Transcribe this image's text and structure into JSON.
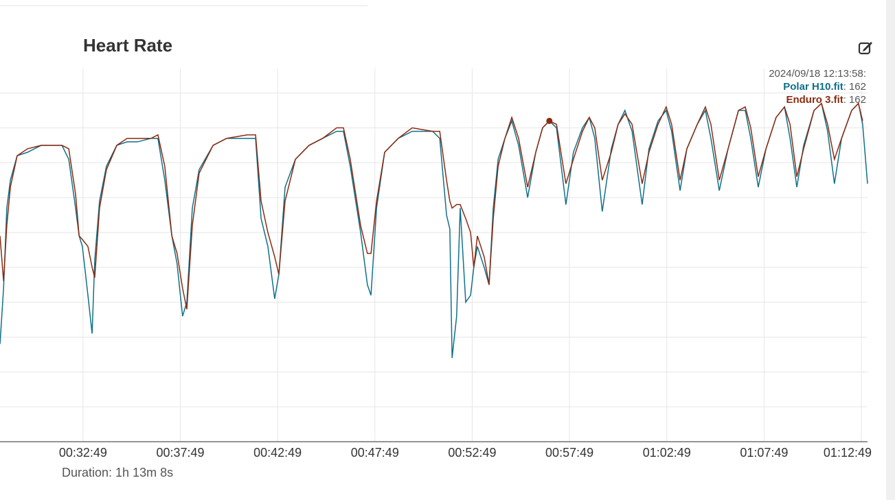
{
  "chart_data": {
    "type": "line",
    "title": "Heart Rate",
    "footer": "Duration: 1h 13m 8s",
    "x": [
      1713,
      1724,
      1734,
      1745,
      1766,
      1798,
      1840,
      1904,
      1925,
      1946,
      1957,
      1967,
      1984,
      1997,
      2005,
      2020,
      2041,
      2073,
      2105,
      2137,
      2179,
      2200,
      2221,
      2243,
      2259,
      2276,
      2289,
      2306,
      2327,
      2370,
      2412,
      2475,
      2501,
      2518,
      2539,
      2560,
      2573,
      2592,
      2624,
      2666,
      2708,
      2751,
      2772,
      2793,
      2825,
      2846,
      2857,
      2874,
      2899,
      2941,
      2984,
      3047,
      3069,
      3090,
      3100,
      3107,
      3121,
      3132,
      3149,
      3164,
      3174,
      3185,
      3206,
      3221,
      3234,
      3249,
      3270,
      3291,
      3312,
      3340,
      3365,
      3386,
      3407,
      3429,
      3458,
      3481,
      3509,
      3530,
      3547,
      3570,
      3598,
      3619,
      3640,
      3662,
      3693,
      3714,
      3742,
      3767,
      3784,
      3810,
      3831,
      3863,
      3888,
      3905,
      3931,
      3958,
      3990,
      4011,
      4028,
      4051,
      4075,
      4106,
      4132,
      4149,
      4170,
      4191,
      4223,
      4246,
      4265,
      4286,
      4308,
      4339,
      4360,
      4373,
      4388
    ],
    "series": [
      {
        "name": "Polar H10.fit",
        "color": "#106f8a",
        "values": [
          98,
          114,
          137,
          145,
          152,
          153,
          155,
          155,
          151,
          137,
          129,
          126,
          112,
          101,
          122,
          139,
          149,
          155,
          156,
          156,
          157,
          157,
          145,
          129,
          121,
          106,
          110,
          137,
          148,
          155,
          157,
          157,
          157,
          134,
          126,
          111,
          118,
          143,
          151,
          155,
          157,
          159,
          159,
          149,
          130,
          115,
          112,
          137,
          153,
          157,
          159,
          159,
          157,
          135,
          131,
          94,
          106,
          137,
          110,
          112,
          120,
          126,
          120,
          115,
          137,
          151,
          157,
          162,
          155,
          140,
          153,
          160,
          162,
          160,
          138,
          153,
          160,
          163,
          157,
          136,
          154,
          161,
          165,
          159,
          138,
          154,
          162,
          165,
          159,
          142,
          154,
          161,
          165,
          157,
          142,
          154,
          165,
          165,
          157,
          143,
          154,
          163,
          166,
          157,
          143,
          155,
          165,
          167,
          159,
          144,
          157,
          165,
          167,
          161,
          144
        ]
      },
      {
        "name": "Enduro 3.fit",
        "color": "#8b2a10",
        "values": [
          129,
          116,
          132,
          143,
          152,
          154,
          155,
          155,
          154,
          141,
          129,
          128,
          126,
          120,
          117,
          137,
          148,
          155,
          157,
          157,
          157,
          158,
          149,
          129,
          124,
          114,
          108,
          132,
          147,
          155,
          157,
          158,
          158,
          139,
          130,
          123,
          118,
          139,
          151,
          155,
          157,
          160,
          160,
          151,
          132,
          124,
          124,
          139,
          153,
          157,
          160,
          159,
          159,
          145,
          139,
          137,
          138,
          138,
          134,
          130,
          120,
          129,
          123,
          115,
          134,
          149,
          157,
          163,
          157,
          143,
          153,
          160,
          162,
          161,
          144,
          151,
          159,
          163,
          160,
          145,
          153,
          161,
          164,
          161,
          144,
          153,
          161,
          166,
          161,
          145,
          154,
          161,
          166,
          161,
          145,
          154,
          165,
          166,
          160,
          146,
          154,
          163,
          166,
          161,
          146,
          154,
          165,
          167,
          161,
          151,
          157,
          165,
          167,
          162,
          null
        ]
      }
    ],
    "xlim": [
      1713,
      4388
    ],
    "xticks": [
      {
        "value": 1969,
        "label": "00:32:49"
      },
      {
        "value": 2269,
        "label": "00:37:49"
      },
      {
        "value": 2569,
        "label": "00:42:49"
      },
      {
        "value": 2869,
        "label": "00:47:49"
      },
      {
        "value": 3169,
        "label": "00:52:49"
      },
      {
        "value": 3469,
        "label": "00:57:49"
      },
      {
        "value": 3769,
        "label": "01:02:49"
      },
      {
        "value": 4069,
        "label": "01:07:49"
      },
      {
        "value": 4369,
        "label": "01:12:49"
      }
    ],
    "ylim": [
      70,
      177
    ],
    "yticks": [
      80,
      90,
      100,
      110,
      120,
      130,
      140,
      150,
      160,
      170
    ],
    "grid": true,
    "tooltip": {
      "time": "2024/09/18 12:13:58:",
      "separator": ":",
      "index": 72,
      "values": [
        162,
        162
      ]
    }
  }
}
